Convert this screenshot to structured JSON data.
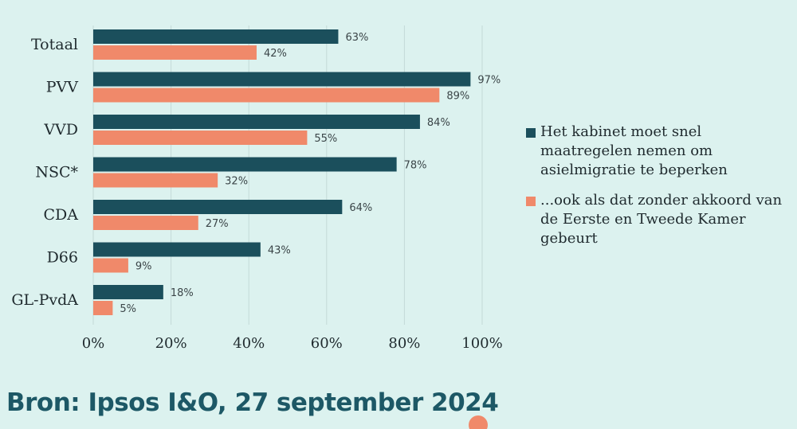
{
  "colors": {
    "series_1": "#1b4f5c",
    "series_2": "#f0896a",
    "background": "#dcf2ef",
    "source_text": "#1d5866"
  },
  "chart_data": {
    "type": "bar",
    "orientation": "horizontal",
    "categories": [
      "Totaal",
      "PVV",
      "VVD",
      "NSC*",
      "CDA",
      "D66",
      "GL-PvdA"
    ],
    "series": [
      {
        "name": "Het kabinet moet snel maatregelen nemen om asielmigratie te beperken",
        "values": [
          63,
          97,
          84,
          78,
          64,
          43,
          18
        ],
        "labels": [
          "63%",
          "97%",
          "84%",
          "78%",
          "64%",
          "43%",
          "18%"
        ]
      },
      {
        "name": "...ook als dat zonder akkoord van de Eerste en Tweede Kamer gebeurt",
        "values": [
          42,
          89,
          55,
          32,
          27,
          9,
          5
        ],
        "labels": [
          "42%",
          "89%",
          "55%",
          "32%",
          "27%",
          "9%",
          "5%"
        ]
      }
    ],
    "x_ticks": [
      {
        "value": 0,
        "label": "0%"
      },
      {
        "value": 20,
        "label": "20%"
      },
      {
        "value": 40,
        "label": "40%"
      },
      {
        "value": 60,
        "label": "60%"
      },
      {
        "value": 80,
        "label": "80%"
      },
      {
        "value": 100,
        "label": "100%"
      }
    ],
    "xlim": [
      0,
      100
    ],
    "grid": "vertical",
    "legend_position": "right"
  },
  "legend": {
    "item_1": "Het kabinet moet snel maatregelen nemen om asielmigratie te beperken",
    "item_2": "...ook als dat zonder akkoord van de Eerste en Tweede Kamer gebeurt"
  },
  "source": {
    "text": "Bron: Ipsos I&O, 27 september 2024"
  }
}
